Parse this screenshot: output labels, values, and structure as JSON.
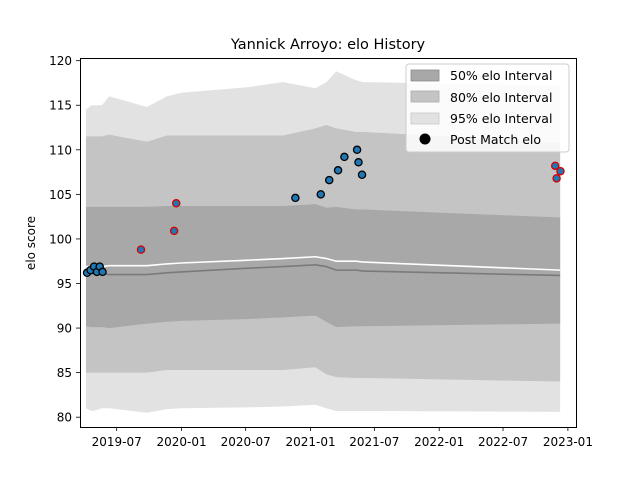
{
  "chart_data": {
    "type": "line",
    "title": "Yannick Arroyo: elo History",
    "xlabel": "",
    "ylabel": "elo score",
    "xlim": [
      "2019-03-19",
      "2023-01-24"
    ],
    "ylim": [
      78.9,
      120.3
    ],
    "x_ticks": [
      "2019-07-01",
      "2020-01-01",
      "2020-07-01",
      "2021-01-01",
      "2021-07-01",
      "2022-01-01",
      "2022-07-01",
      "2023-01-01"
    ],
    "x_tick_labels": [
      "2019-07",
      "2020-01",
      "2020-07",
      "2021-01",
      "2021-07",
      "2022-01",
      "2022-07",
      "2023-01"
    ],
    "y_ticks": [
      80,
      85,
      90,
      95,
      100,
      105,
      110,
      115,
      120
    ],
    "y_tick_labels": [
      "80",
      "85",
      "90",
      "95",
      "100",
      "105",
      "110",
      "115",
      "120"
    ],
    "legend_position": "top-right",
    "legend": [
      {
        "label": "50% elo Interval",
        "kind": "band",
        "color": "#a8a8a8"
      },
      {
        "label": "80% elo Interval",
        "kind": "band",
        "color": "#c4c4c4"
      },
      {
        "label": "95% elo Interval",
        "kind": "band",
        "color": "#e2e2e2"
      },
      {
        "label": "Post Match elo",
        "kind": "marker",
        "color": "#000000"
      }
    ],
    "dates": [
      "2019-04-05",
      "2019-04-20",
      "2019-05-05",
      "2019-05-20",
      "2019-06-10",
      "2019-09-25",
      "2019-11-20",
      "2019-12-31",
      "2020-07-01",
      "2020-10-15",
      "2021-01-15",
      "2021-02-15",
      "2021-03-15",
      "2021-05-10",
      "2021-06-01",
      "2022-12-10"
    ],
    "bands": {
      "p95": {
        "lower": [
          81.0,
          80.7,
          80.8,
          81.0,
          81.0,
          80.5,
          80.9,
          81.0,
          81.1,
          81.2,
          81.4,
          81.0,
          80.7,
          80.7,
          80.7,
          80.6
        ],
        "upper": [
          114.5,
          115.0,
          115.0,
          115.0,
          116.0,
          114.8,
          116.0,
          116.4,
          117.0,
          117.6,
          116.9,
          117.6,
          118.8,
          117.8,
          117.6,
          117.2
        ]
      },
      "p80": {
        "lower": [
          85.0,
          85.0,
          85.0,
          85.0,
          85.0,
          85.0,
          85.3,
          85.3,
          85.3,
          85.3,
          85.6,
          84.8,
          84.5,
          84.4,
          84.4,
          84.0
        ]
      },
      "p80_upper": [
        111.5,
        111.5,
        111.5,
        111.5,
        111.7,
        110.9,
        111.6,
        111.6,
        111.6,
        111.6,
        112.4,
        112.8,
        112.4,
        112.0,
        112.0,
        110.8
      ],
      "p50": {
        "lower": [
          90.2,
          90.1,
          90.1,
          90.1,
          90.0,
          90.5,
          90.7,
          90.8,
          91.0,
          91.2,
          91.4,
          90.7,
          90.1,
          90.2,
          90.2,
          90.5
        ],
        "upper": [
          103.6,
          103.6,
          103.6,
          103.6,
          103.6,
          103.6,
          103.7,
          103.7,
          103.7,
          103.7,
          103.9,
          103.5,
          103.6,
          103.3,
          103.3,
          102.4
        ]
      }
    },
    "center_gray": [
      96.1,
      96.1,
      96.1,
      96.1,
      96.0,
      96.0,
      96.2,
      96.3,
      96.7,
      96.9,
      97.1,
      96.9,
      96.5,
      96.5,
      96.4,
      95.9
    ],
    "center_white": [
      96.9,
      96.9,
      96.9,
      96.9,
      97.0,
      97.0,
      97.2,
      97.3,
      97.6,
      97.8,
      98.0,
      97.8,
      97.5,
      97.5,
      97.4,
      96.5
    ],
    "points": [
      {
        "date": "2019-04-08",
        "elo": 96.2,
        "highlight": false
      },
      {
        "date": "2019-04-18",
        "elo": 96.5,
        "highlight": false
      },
      {
        "date": "2019-04-28",
        "elo": 96.9,
        "highlight": false
      },
      {
        "date": "2019-05-06",
        "elo": 96.3,
        "highlight": false
      },
      {
        "date": "2019-05-14",
        "elo": 96.9,
        "highlight": false
      },
      {
        "date": "2019-05-22",
        "elo": 96.3,
        "highlight": false
      },
      {
        "date": "2019-09-08",
        "elo": 98.8,
        "highlight": true
      },
      {
        "date": "2019-12-11",
        "elo": 100.9,
        "highlight": true
      },
      {
        "date": "2019-12-17",
        "elo": 104.0,
        "highlight": true
      },
      {
        "date": "2020-11-19",
        "elo": 104.6,
        "highlight": false
      },
      {
        "date": "2021-01-30",
        "elo": 105.0,
        "highlight": false
      },
      {
        "date": "2021-02-23",
        "elo": 106.6,
        "highlight": false
      },
      {
        "date": "2021-03-20",
        "elo": 107.7,
        "highlight": false
      },
      {
        "date": "2021-04-07",
        "elo": 109.2,
        "highlight": false
      },
      {
        "date": "2021-05-13",
        "elo": 110.0,
        "highlight": false
      },
      {
        "date": "2021-05-17",
        "elo": 108.6,
        "highlight": false
      },
      {
        "date": "2021-05-27",
        "elo": 107.2,
        "highlight": false
      },
      {
        "date": "2022-11-26",
        "elo": 108.2,
        "highlight": true
      },
      {
        "date": "2022-11-30",
        "elo": 106.8,
        "highlight": true
      },
      {
        "date": "2022-12-11",
        "elo": 107.6,
        "highlight": true
      }
    ],
    "colors": {
      "band50": "#a8a8a8",
      "band80": "#c4c4c4",
      "band95": "#e2e2e2",
      "center_gray": "#7a7a7a",
      "center_white": "#ffffff",
      "point_fill": "#1f77b4",
      "point_edge": "#000000",
      "point_edge_highlight": "#d40000"
    }
  }
}
